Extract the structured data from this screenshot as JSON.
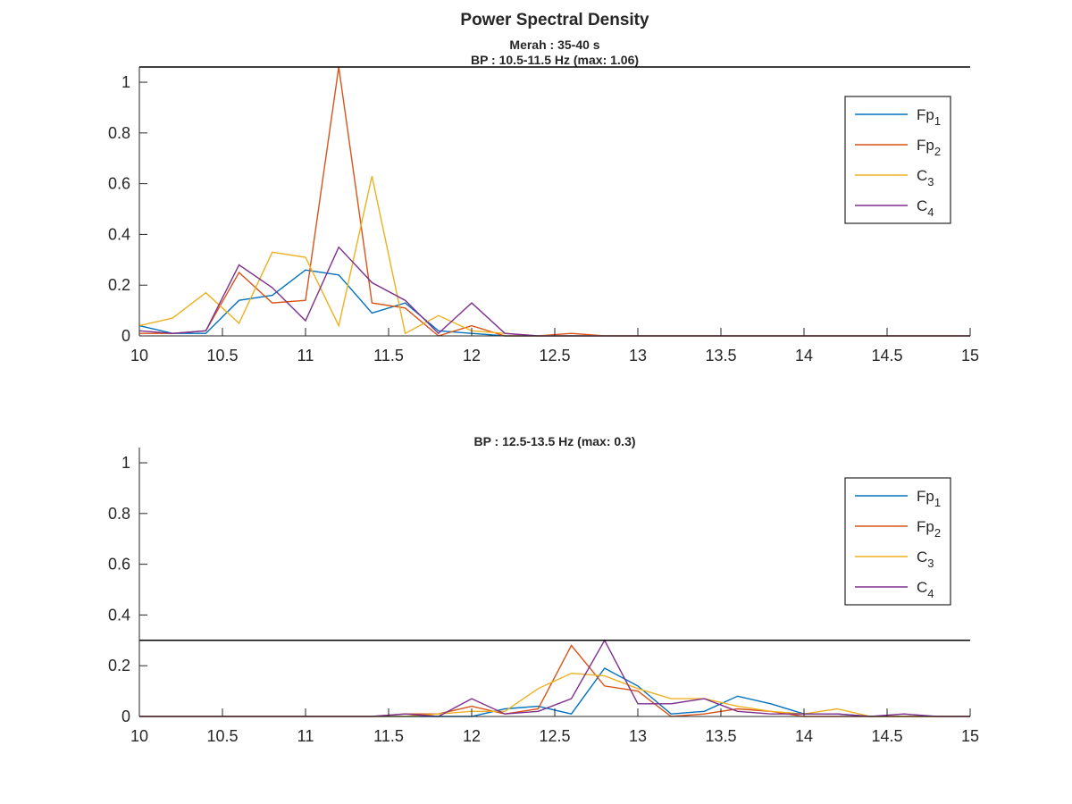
{
  "figure": {
    "title": "Power Spectral Density",
    "subtitle": "Merah : 35-40 s"
  },
  "chart_data": [
    {
      "type": "line",
      "title": "BP : 10.5-11.5 Hz (max: 1.06)",
      "xlabel": "",
      "ylabel": "",
      "xlim": [
        10,
        15
      ],
      "ylim": [
        0,
        1.06
      ],
      "xticks": [
        10,
        10.5,
        11,
        11.5,
        12,
        12.5,
        13,
        13.5,
        14,
        14.5,
        15
      ],
      "xtick_labels": [
        "10",
        "10.5",
        "11",
        "11.5",
        "12",
        "12.5",
        "13",
        "13.5",
        "14",
        "14.5",
        "15"
      ],
      "yticks": [
        0,
        0.2,
        0.4,
        0.6,
        0.8,
        1
      ],
      "ytick_labels": [
        "0",
        "0.2",
        "0.4",
        "0.6",
        "0.8",
        "1"
      ],
      "reference_line": 1.06,
      "grid": false,
      "legend_position": "top-right",
      "x": [
        10,
        10.2,
        10.4,
        10.6,
        10.8,
        11,
        11.2,
        11.4,
        11.6,
        11.8,
        12,
        12.2,
        12.4,
        12.6,
        12.8,
        13,
        13.2,
        13.4,
        13.6,
        13.8,
        14,
        14.2,
        14.4,
        14.6,
        14.8,
        15
      ],
      "series": [
        {
          "name": "Fp",
          "sub": "1",
          "color": "#0072BD",
          "values": [
            0.04,
            0.01,
            0.01,
            0.14,
            0.16,
            0.26,
            0.24,
            0.09,
            0.13,
            0.02,
            0.01,
            0.0,
            0.0,
            0.0,
            0.0,
            0.0,
            0.0,
            0.0,
            0.0,
            0.0,
            0.0,
            0.0,
            0.0,
            0.0,
            0.0,
            0.0
          ]
        },
        {
          "name": "Fp",
          "sub": "2",
          "color": "#D95319",
          "values": [
            0.01,
            0.01,
            0.02,
            0.25,
            0.13,
            0.14,
            1.06,
            0.13,
            0.11,
            0.0,
            0.04,
            0.0,
            0.0,
            0.01,
            0.0,
            0.0,
            0.0,
            0.0,
            0.0,
            0.0,
            0.0,
            0.0,
            0.0,
            0.0,
            0.0,
            0.0
          ]
        },
        {
          "name": "C",
          "sub": "3",
          "color": "#EDB120",
          "values": [
            0.04,
            0.07,
            0.17,
            0.05,
            0.33,
            0.31,
            0.04,
            0.63,
            0.01,
            0.08,
            0.02,
            0.01,
            0.0,
            0.0,
            0.0,
            0.0,
            0.0,
            0.0,
            0.0,
            0.0,
            0.0,
            0.0,
            0.0,
            0.0,
            0.0,
            0.0
          ]
        },
        {
          "name": "C",
          "sub": "4",
          "color": "#7E2F8E",
          "values": [
            0.02,
            0.01,
            0.02,
            0.28,
            0.19,
            0.06,
            0.35,
            0.21,
            0.14,
            0.01,
            0.13,
            0.01,
            0.0,
            0.0,
            0.0,
            0.0,
            0.0,
            0.0,
            0.0,
            0.0,
            0.0,
            0.0,
            0.0,
            0.0,
            0.0,
            0.0
          ]
        }
      ]
    },
    {
      "type": "line",
      "title": "BP : 12.5-13.5 Hz (max: 0.3)",
      "xlabel": "",
      "ylabel": "",
      "xlim": [
        10,
        15
      ],
      "ylim": [
        0,
        1.06
      ],
      "xticks": [
        10,
        10.5,
        11,
        11.5,
        12,
        12.5,
        13,
        13.5,
        14,
        14.5,
        15
      ],
      "xtick_labels": [
        "10",
        "10.5",
        "11",
        "11.5",
        "12",
        "12.5",
        "13",
        "13.5",
        "14",
        "14.5",
        "15"
      ],
      "yticks": [
        0,
        0.2,
        0.4,
        0.6,
        0.8,
        1
      ],
      "ytick_labels": [
        "0",
        "0.2",
        "0.4",
        "0.6",
        "0.8",
        "1"
      ],
      "reference_line": 0.3,
      "grid": false,
      "legend_position": "top-right",
      "x": [
        10,
        10.2,
        10.4,
        10.6,
        10.8,
        11,
        11.2,
        11.4,
        11.6,
        11.8,
        12,
        12.2,
        12.4,
        12.6,
        12.8,
        13,
        13.2,
        13.4,
        13.6,
        13.8,
        14,
        14.2,
        14.4,
        14.6,
        14.8,
        15
      ],
      "series": [
        {
          "name": "Fp",
          "sub": "1",
          "color": "#0072BD",
          "values": [
            0.0,
            0.0,
            0.0,
            0.0,
            0.0,
            0.0,
            0.0,
            0.0,
            0.0,
            0.0,
            0.0,
            0.03,
            0.04,
            0.01,
            0.19,
            0.12,
            0.01,
            0.02,
            0.08,
            0.05,
            0.01,
            0.01,
            0.0,
            0.0,
            0.0,
            0.0
          ]
        },
        {
          "name": "Fp",
          "sub": "2",
          "color": "#D95319",
          "values": [
            0.0,
            0.0,
            0.0,
            0.0,
            0.0,
            0.0,
            0.0,
            0.0,
            0.01,
            0.01,
            0.04,
            0.01,
            0.03,
            0.28,
            0.12,
            0.1,
            0.0,
            0.01,
            0.03,
            0.02,
            0.0,
            0.0,
            0.0,
            0.0,
            0.0,
            0.0
          ]
        },
        {
          "name": "C",
          "sub": "3",
          "color": "#EDB120",
          "values": [
            0.0,
            0.0,
            0.0,
            0.0,
            0.0,
            0.0,
            0.0,
            0.0,
            0.0,
            0.01,
            0.02,
            0.02,
            0.11,
            0.17,
            0.16,
            0.11,
            0.07,
            0.07,
            0.04,
            0.02,
            0.01,
            0.03,
            0.0,
            0.0,
            0.0,
            0.0
          ]
        },
        {
          "name": "C",
          "sub": "4",
          "color": "#7E2F8E",
          "values": [
            0.0,
            0.0,
            0.0,
            0.0,
            0.0,
            0.0,
            0.0,
            0.0,
            0.01,
            0.0,
            0.07,
            0.01,
            0.02,
            0.07,
            0.3,
            0.05,
            0.05,
            0.07,
            0.02,
            0.01,
            0.01,
            0.01,
            0.0,
            0.01,
            0.0,
            0.0
          ]
        }
      ]
    }
  ]
}
